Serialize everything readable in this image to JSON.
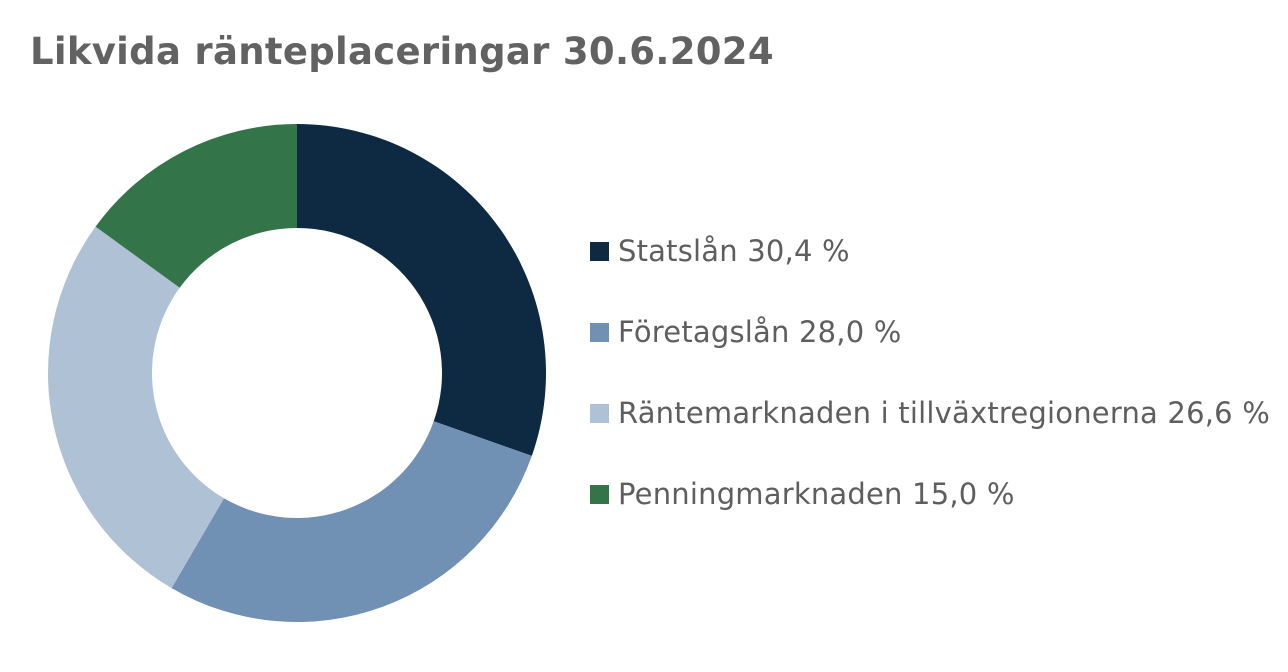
{
  "chart_data": {
    "type": "pie",
    "donut": true,
    "title": "Likvida ränteplaceringar 30.6.2024",
    "slices": [
      {
        "label": "Statslån 30,4 %",
        "value": 30.4,
        "color": "#0d2a42"
      },
      {
        "label": "Företagslån 28,0 %",
        "value": 28.0,
        "color": "#7090b4"
      },
      {
        "label": "Räntemarknaden i tillväxtregionerna 26,6 %",
        "value": 26.6,
        "color": "#aec1d5"
      },
      {
        "label": "Penningmarknaden 15,0 %",
        "value": 15.0,
        "color": "#347449"
      }
    ],
    "legend_position": "right"
  }
}
